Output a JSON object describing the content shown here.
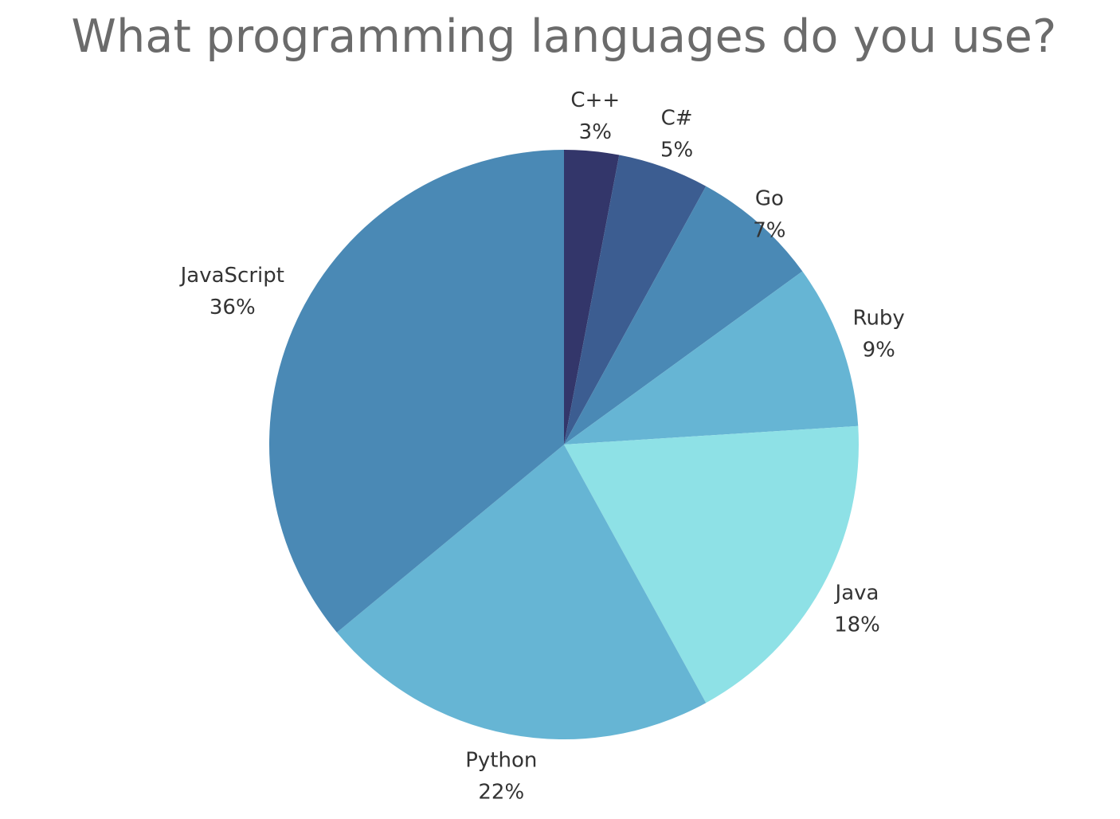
{
  "chart_data": {
    "type": "pie",
    "title": "What programming languages do you use?",
    "slices": [
      {
        "label": "C++",
        "value": 3,
        "pct_label": "3%",
        "color": "#33366a"
      },
      {
        "label": "C#",
        "value": 5,
        "pct_label": "5%",
        "color": "#3c5d91"
      },
      {
        "label": "Go",
        "value": 7,
        "pct_label": "7%",
        "color": "#4a89b5"
      },
      {
        "label": "Ruby",
        "value": 9,
        "pct_label": "9%",
        "color": "#66b5d4"
      },
      {
        "label": "Java",
        "value": 18,
        "pct_label": "18%",
        "color": "#8ee1e6"
      },
      {
        "label": "Python",
        "value": 22,
        "pct_label": "22%",
        "color": "#66b5d4"
      },
      {
        "label": "JavaScript",
        "value": 36,
        "pct_label": "36%",
        "color": "#4a89b5"
      }
    ],
    "start_angle": "12 o'clock",
    "direction": "clockwise",
    "legend": "none"
  }
}
